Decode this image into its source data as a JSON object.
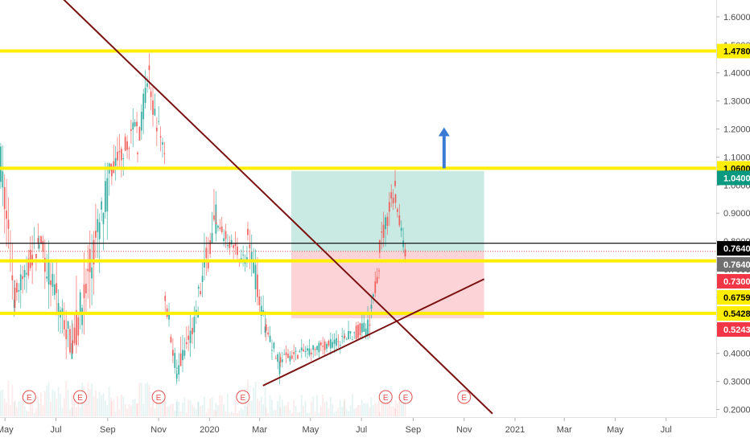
{
  "chart_data": {
    "type": "candlestick",
    "title": "",
    "xlabel": "",
    "ylabel": "",
    "grid": false,
    "ylim": [
      0.17,
      1.66
    ],
    "xlim": [
      "2019-04-25",
      "2021-08-30"
    ],
    "x_ticks": [
      {
        "date": "2019-05-01",
        "label": "May"
      },
      {
        "date": "2019-07-01",
        "label": "Jul"
      },
      {
        "date": "2019-09-01",
        "label": "Sep"
      },
      {
        "date": "2019-11-01",
        "label": "Nov"
      },
      {
        "date": "2020-01-01",
        "label": "2020"
      },
      {
        "date": "2020-03-01",
        "label": "Mar"
      },
      {
        "date": "2020-05-01",
        "label": "May"
      },
      {
        "date": "2020-07-01",
        "label": "Jul"
      },
      {
        "date": "2020-09-01",
        "label": "Sep"
      },
      {
        "date": "2020-11-01",
        "label": "Nov"
      },
      {
        "date": "2021-01-01",
        "label": "2021"
      },
      {
        "date": "2021-03-01",
        "label": "Mar"
      },
      {
        "date": "2021-05-01",
        "label": "May"
      },
      {
        "date": "2021-07-01",
        "label": "Jul"
      }
    ],
    "y_ticks": [
      "0.2000",
      "0.3000",
      "0.4000",
      "0.5000",
      "0.6000",
      "0.7000",
      "0.8000",
      "0.9000",
      "1.0000",
      "1.1000",
      "1.2000",
      "1.3000",
      "1.4000",
      "1.5000",
      "1.6000"
    ],
    "horizontal_levels": [
      {
        "value": 1.478,
        "color": "#ffee00"
      },
      {
        "value": 1.06,
        "color": "#ffee00"
      },
      {
        "value": 0.73,
        "color": "#ffee00"
      },
      {
        "value": 0.5428,
        "color": "#ffee00"
      }
    ],
    "current_price_line": {
      "value": 0.764,
      "color": "#000000"
    },
    "dotted_price_line": {
      "value": 0.764,
      "color": "#e05050"
    },
    "price_badges": [
      {
        "value": 1.478,
        "label": "1.4780",
        "bg": "#ffee00",
        "fg": "#000000"
      },
      {
        "value": 1.06,
        "label": "1.0600",
        "bg": "#ffee00",
        "fg": "#000000"
      },
      {
        "value": 1.04,
        "label": "1.0400",
        "bg": "#089981",
        "fg": "#ffffff"
      },
      {
        "value": 0.764,
        "label": "0.7640",
        "bg": "#000000",
        "fg": "#ffffff"
      },
      {
        "value": 0.764,
        "label": "0.7640",
        "bg": "#707070",
        "fg": "#ffffff",
        "row": 2
      },
      {
        "value": 0.73,
        "label": "0.7300",
        "bg": "#f23645",
        "fg": "#ffffff",
        "row": 2
      },
      {
        "value": 0.6759,
        "label": "0.6759",
        "bg": "#ffee00",
        "fg": "#000000",
        "row": 2
      },
      {
        "value": 0.5428,
        "label": "0.5428",
        "bg": "#ffee00",
        "fg": "#000000",
        "row": 2
      },
      {
        "value": 0.5243,
        "label": "0.5243",
        "bg": "#f23645",
        "fg": "#ffffff",
        "row": 2
      }
    ],
    "trendlines": [
      {
        "from": [
          "2019-06-20",
          1.72
        ],
        "to": [
          "2020-12-05",
          0.185
        ],
        "color": "#7a1212",
        "note": "descending"
      },
      {
        "from": [
          "2020-03-05",
          0.285
        ],
        "to": [
          "2020-11-25",
          0.665
        ],
        "color": "#7a1212",
        "note": "ascending"
      }
    ],
    "position_tool": {
      "start": "2020-04-08",
      "end": "2020-11-25",
      "entry": 0.764,
      "target": 1.05,
      "stop": 0.525,
      "profit_color": "#089981",
      "loss_color": "#f23645"
    },
    "arrow": {
      "date": "2020-10-08",
      "from": 1.06,
      "to": 1.2,
      "color": "#3a7bd5"
    },
    "earnings_markers": [
      {
        "date": "2019-05-30",
        "label": "E"
      },
      {
        "date": "2019-07-30",
        "label": "E"
      },
      {
        "date": "2019-11-01",
        "label": "E"
      },
      {
        "date": "2020-02-10",
        "label": "E"
      },
      {
        "date": "2020-07-30",
        "label": "E"
      },
      {
        "date": "2020-08-23",
        "label": "E"
      },
      {
        "date": "2020-11-01",
        "label": "E"
      }
    ],
    "series": [
      {
        "segments": [
          {
            "start": "2019-04-25",
            "end": "2019-05-12",
            "from": 1.08,
            "to": 0.6,
            "lo": 0.53,
            "hi": 1.15
          },
          {
            "start": "2019-05-12",
            "end": "2019-06-10",
            "from": 0.6,
            "to": 0.8,
            "lo": 0.5,
            "hi": 0.88
          },
          {
            "start": "2019-06-10",
            "end": "2019-07-20",
            "from": 0.8,
            "to": 0.42,
            "lo": 0.38,
            "hi": 0.82
          },
          {
            "start": "2019-07-20",
            "end": "2019-09-05",
            "from": 0.42,
            "to": 1.05,
            "lo": 0.4,
            "hi": 1.08
          },
          {
            "start": "2019-09-05",
            "end": "2019-10-06",
            "from": 1.05,
            "to": 1.22,
            "lo": 1.0,
            "hi": 1.33
          },
          {
            "start": "2019-10-06",
            "end": "2019-10-22",
            "from": 1.15,
            "to": 1.45,
            "lo": 1.05,
            "hi": 1.47
          },
          {
            "start": "2019-10-22",
            "end": "2019-11-08",
            "from": 1.3,
            "to": 1.12,
            "lo": 1.02,
            "hi": 1.35
          },
          {
            "start": "2019-11-08",
            "end": "2019-11-22",
            "from": 0.6,
            "to": 0.33,
            "lo": 0.29,
            "hi": 0.62
          },
          {
            "start": "2019-11-22",
            "end": "2019-12-18",
            "from": 0.33,
            "to": 0.55,
            "lo": 0.3,
            "hi": 0.6
          },
          {
            "start": "2019-12-18",
            "end": "2020-01-08",
            "from": 0.6,
            "to": 0.88,
            "lo": 0.55,
            "hi": 1.05
          },
          {
            "start": "2020-01-08",
            "end": "2020-02-15",
            "from": 0.85,
            "to": 0.72,
            "lo": 0.68,
            "hi": 0.92
          },
          {
            "start": "2020-02-15",
            "end": "2020-03-08",
            "from": 0.8,
            "to": 0.5,
            "lo": 0.45,
            "hi": 0.87
          },
          {
            "start": "2020-03-08",
            "end": "2020-03-25",
            "from": 0.5,
            "to": 0.34,
            "lo": 0.29,
            "hi": 0.55
          },
          {
            "start": "2020-03-25",
            "end": "2020-06-10",
            "from": 0.38,
            "to": 0.45,
            "lo": 0.35,
            "hi": 0.52
          },
          {
            "start": "2020-06-10",
            "end": "2020-07-12",
            "from": 0.45,
            "to": 0.5,
            "lo": 0.45,
            "hi": 0.72
          },
          {
            "start": "2020-07-12",
            "end": "2020-07-22",
            "from": 0.55,
            "to": 0.73,
            "lo": 0.52,
            "hi": 0.76
          },
          {
            "start": "2020-07-22",
            "end": "2020-08-10",
            "from": 0.78,
            "to": 1.0,
            "lo": 0.74,
            "hi": 1.06
          },
          {
            "start": "2020-08-10",
            "end": "2020-08-22",
            "from": 0.95,
            "to": 0.764,
            "lo": 0.72,
            "hi": 0.97
          }
        ]
      }
    ]
  }
}
